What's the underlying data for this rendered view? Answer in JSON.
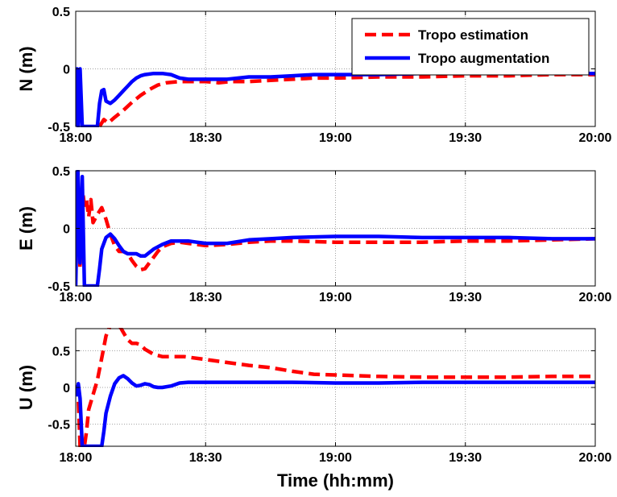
{
  "chart_data": [
    {
      "type": "line",
      "ylabel": "N (m)",
      "xlabel": "",
      "xlim": [
        0,
        120
      ],
      "ylim": [
        -0.5,
        0.5
      ],
      "xticks": [
        0,
        30,
        60,
        90,
        120
      ],
      "xtick_labels": [
        "18:00",
        "18:30",
        "19:00",
        "19:30",
        "20:00"
      ],
      "yticks": [
        -0.5,
        0,
        0.5
      ],
      "ytick_labels": [
        "-0.5",
        "0",
        "0.5"
      ],
      "grid": true,
      "legend": {
        "position": "top-right",
        "entries": [
          "Tropo estimation",
          "Tropo augmentation"
        ]
      },
      "series": [
        {
          "name": "Tropo estimation",
          "color": "#ff0000",
          "style": "dashed",
          "x": [
            5.5,
            6.5,
            7.5,
            9,
            11,
            13,
            15,
            17,
            19,
            21,
            24,
            27,
            30,
            33,
            36,
            40,
            45,
            50,
            55,
            60,
            70,
            80,
            90,
            100,
            110,
            120
          ],
          "y": [
            -0.5,
            -0.44,
            -0.47,
            -0.42,
            -0.36,
            -0.29,
            -0.23,
            -0.18,
            -0.14,
            -0.12,
            -0.11,
            -0.11,
            -0.11,
            -0.12,
            -0.11,
            -0.11,
            -0.1,
            -0.09,
            -0.08,
            -0.08,
            -0.07,
            -0.07,
            -0.06,
            -0.06,
            -0.05,
            -0.05
          ]
        },
        {
          "name": "Tropo augmentation",
          "color": "#0000ff",
          "style": "solid",
          "x": [
            0,
            0.3,
            0.6,
            1,
            1.5,
            2,
            3,
            4,
            5,
            5.5,
            6,
            6.5,
            7,
            8,
            9,
            10,
            11,
            12,
            13,
            14,
            15,
            16,
            18,
            20,
            22,
            24,
            26,
            28,
            30,
            35,
            40,
            45,
            50,
            55,
            60,
            70,
            80,
            90,
            100,
            110,
            120
          ],
          "y": [
            -0.5,
            0,
            -0.5,
            0,
            -0.5,
            -0.5,
            -0.5,
            -0.5,
            -0.5,
            -0.3,
            -0.19,
            -0.18,
            -0.28,
            -0.3,
            -0.27,
            -0.23,
            -0.19,
            -0.15,
            -0.11,
            -0.08,
            -0.06,
            -0.05,
            -0.04,
            -0.04,
            -0.05,
            -0.08,
            -0.09,
            -0.09,
            -0.09,
            -0.09,
            -0.07,
            -0.07,
            -0.06,
            -0.05,
            -0.05,
            -0.05,
            -0.04,
            -0.04,
            -0.04,
            -0.04,
            -0.04
          ]
        }
      ]
    },
    {
      "type": "line",
      "ylabel": "E (m)",
      "xlabel": "",
      "xlim": [
        0,
        120
      ],
      "ylim": [
        -0.5,
        0.5
      ],
      "xticks": [
        0,
        30,
        60,
        90,
        120
      ],
      "xtick_labels": [
        "18:00",
        "18:30",
        "19:00",
        "19:30",
        "20:00"
      ],
      "yticks": [
        -0.5,
        0,
        0.5
      ],
      "ytick_labels": [
        "-0.5",
        "0",
        "0.5"
      ],
      "grid": true,
      "series": [
        {
          "name": "Tropo estimation",
          "color": "#ff0000",
          "style": "dashed",
          "x": [
            0,
            0.5,
            1,
            1.5,
            2,
            2.5,
            3,
            3.5,
            4,
            5,
            6,
            7,
            8,
            9,
            10,
            11,
            12,
            13,
            14,
            15,
            16,
            17,
            18,
            19,
            20,
            22,
            24,
            26,
            28,
            30,
            35,
            40,
            45,
            50,
            60,
            70,
            80,
            90,
            100,
            110,
            120
          ],
          "y": [
            0.05,
            0.2,
            -0.35,
            0.35,
            0.2,
            0.25,
            0.1,
            0.25,
            0.05,
            0.12,
            0.18,
            0.08,
            -0.05,
            -0.15,
            -0.2,
            -0.2,
            -0.22,
            -0.28,
            -0.33,
            -0.36,
            -0.35,
            -0.3,
            -0.25,
            -0.2,
            -0.16,
            -0.13,
            -0.12,
            -0.13,
            -0.14,
            -0.15,
            -0.14,
            -0.12,
            -0.11,
            -0.11,
            -0.12,
            -0.12,
            -0.12,
            -0.11,
            -0.11,
            -0.1,
            -0.09
          ]
        },
        {
          "name": "Tropo augmentation",
          "color": "#0000ff",
          "style": "solid",
          "x": [
            0,
            0.5,
            1,
            1.5,
            2,
            3,
            4,
            5,
            5.5,
            6,
            7,
            8,
            9,
            10,
            11,
            12,
            13,
            14,
            15,
            16,
            17,
            18,
            20,
            22,
            24,
            26,
            28,
            30,
            35,
            40,
            45,
            50,
            60,
            70,
            80,
            90,
            100,
            110,
            120
          ],
          "y": [
            -0.5,
            0.5,
            -0.3,
            0.45,
            -0.5,
            -0.5,
            -0.5,
            -0.5,
            -0.35,
            -0.18,
            -0.08,
            -0.05,
            -0.09,
            -0.15,
            -0.2,
            -0.22,
            -0.22,
            -0.22,
            -0.24,
            -0.24,
            -0.21,
            -0.18,
            -0.14,
            -0.11,
            -0.11,
            -0.11,
            -0.12,
            -0.13,
            -0.13,
            -0.1,
            -0.09,
            -0.08,
            -0.07,
            -0.07,
            -0.08,
            -0.08,
            -0.08,
            -0.09,
            -0.09
          ]
        }
      ]
    },
    {
      "type": "line",
      "ylabel": "U (m)",
      "xlabel": "Time (hh:mm)",
      "xlim": [
        0,
        120
      ],
      "ylim": [
        -0.8,
        0.8
      ],
      "xticks": [
        0,
        30,
        60,
        90,
        120
      ],
      "xtick_labels": [
        "18:00",
        "18:30",
        "19:00",
        "19:30",
        "20:00"
      ],
      "yticks": [
        -0.5,
        0,
        0.5
      ],
      "ytick_labels": [
        "-0.5",
        "0",
        "0.5"
      ],
      "grid": true,
      "series": [
        {
          "name": "Tropo estimation",
          "color": "#ff0000",
          "style": "dashed",
          "x": [
            0,
            0.5,
            1,
            1.5,
            2,
            2.5,
            3,
            4,
            5,
            6,
            7,
            8,
            9,
            10,
            11,
            12,
            13,
            14,
            15,
            16,
            18,
            20,
            22,
            25,
            30,
            35,
            40,
            45,
            50,
            55,
            60,
            70,
            80,
            90,
            100,
            110,
            120
          ],
          "y": [
            0.02,
            0,
            -0.8,
            -0.8,
            -0.8,
            -0.6,
            -0.3,
            -0.1,
            0.1,
            0.4,
            0.7,
            0.85,
            0.9,
            0.85,
            0.75,
            0.65,
            0.6,
            0.6,
            0.58,
            0.52,
            0.45,
            0.42,
            0.42,
            0.42,
            0.38,
            0.34,
            0.3,
            0.27,
            0.22,
            0.18,
            0.17,
            0.15,
            0.14,
            0.14,
            0.14,
            0.15,
            0.15
          ]
        },
        {
          "name": "Tropo augmentation",
          "color": "#0000ff",
          "style": "solid",
          "x": [
            0,
            0.3,
            0.6,
            1,
            1.5,
            2,
            3,
            4,
            5,
            6,
            6.5,
            7,
            8,
            9,
            10,
            11,
            12,
            13,
            14,
            15,
            16,
            17,
            18,
            19,
            20,
            22,
            24,
            26,
            28,
            30,
            40,
            50,
            60,
            70,
            80,
            90,
            100,
            110,
            120
          ],
          "y": [
            -0.05,
            -0.1,
            0.05,
            -0.15,
            -0.8,
            -0.8,
            -0.8,
            -0.8,
            -0.8,
            -0.8,
            -0.6,
            -0.35,
            -0.12,
            0.05,
            0.13,
            0.16,
            0.12,
            0.06,
            0.02,
            0.03,
            0.05,
            0.04,
            0.01,
            0.0,
            0.0,
            0.02,
            0.06,
            0.07,
            0.07,
            0.07,
            0.07,
            0.07,
            0.06,
            0.06,
            0.07,
            0.07,
            0.07,
            0.07,
            0.07
          ]
        }
      ]
    }
  ]
}
